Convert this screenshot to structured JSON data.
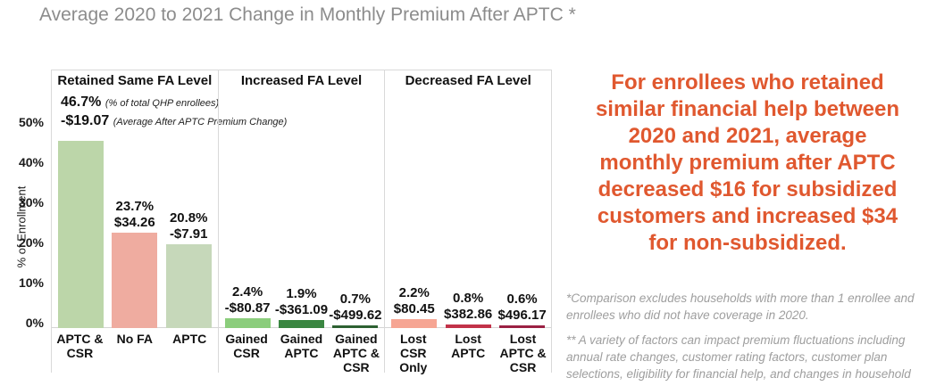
{
  "title": {
    "text": "Average 2020 to 2021 Change in Monthly Premium After APTC *",
    "color": "#8c8c8c"
  },
  "chart_data": {
    "type": "bar",
    "ylabel": "% of Enrollment",
    "ylim": [
      0,
      55
    ],
    "grid": false,
    "yticks": [
      {
        "label": "0%",
        "value": 0
      },
      {
        "label": "10%",
        "value": 10
      },
      {
        "label": "20%",
        "value": 20
      },
      {
        "label": "30%",
        "value": 30
      },
      {
        "label": "40%",
        "value": 40
      },
      {
        "label": "50%",
        "value": 50
      }
    ],
    "groups": [
      {
        "header": "Retained Same FA Level",
        "bars": [
          {
            "category": "APTC & CSR",
            "pct": 46.7,
            "pct_label": "46.7%",
            "value_label": "-$19.07",
            "color": "#bcd6a9",
            "pct_note": "(% of total QHP enrollees)",
            "value_note": "(Average After APTC Premium Change)"
          },
          {
            "category": "No FA",
            "pct": 23.7,
            "pct_label": "23.7%",
            "value_label": "$34.26",
            "color": "#efaca0"
          },
          {
            "category": "APTC",
            "pct": 20.8,
            "pct_label": "20.8%",
            "value_label": "-$7.91",
            "color": "#c6d8ba"
          }
        ]
      },
      {
        "header": "Increased FA Level",
        "bars": [
          {
            "category": "Gained CSR",
            "pct": 2.4,
            "pct_label": "2.4%",
            "value_label": "-$80.87",
            "color": "#8bcd7c"
          },
          {
            "category": "Gained APTC",
            "pct": 1.9,
            "pct_label": "1.9%",
            "value_label": "-$361.09",
            "color": "#3a8641"
          },
          {
            "category": "Gained APTC & CSR",
            "pct": 0.7,
            "pct_label": "0.7%",
            "value_label": "-$499.62",
            "color": "#2d6132"
          }
        ]
      },
      {
        "header": "Decreased FA Level",
        "bars": [
          {
            "category": "Lost CSR Only",
            "pct": 2.2,
            "pct_label": "2.2%",
            "value_label": "$80.45",
            "color": "#f6a593"
          },
          {
            "category": "Lost APTC",
            "pct": 0.8,
            "pct_label": "0.8%",
            "value_label": "$382.86",
            "color": "#c23249"
          },
          {
            "category": "Lost APTC & CSR",
            "pct": 0.6,
            "pct_label": "0.6%",
            "value_label": "$496.17",
            "color": "#9b2143"
          }
        ]
      }
    ]
  },
  "callout": {
    "color": "#e0582f",
    "lines": [
      "For enrollees who retained",
      "similar financial help between",
      "2020 and 2021, average",
      "monthly premium after APTC",
      "decreased $16 for subsidized",
      "customers and increased $34",
      "for non-subsidized."
    ]
  },
  "footnotes": [
    "*Comparison excludes households with more than 1 enrollee and enrollees who did not have coverage in 2020.",
    "** A variety of factors can impact premium fluctuations including annual rate changes, customer rating factors, customer plan selections, eligibility for financial help, and changes in household income."
  ]
}
